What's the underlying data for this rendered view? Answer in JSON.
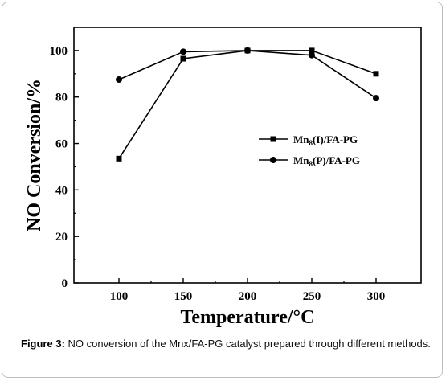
{
  "chart_data": {
    "type": "line",
    "xlabel": "Temperature/°C",
    "ylabel": "NO Conversion/%",
    "x": [
      100,
      150,
      200,
      250,
      300
    ],
    "xlim": [
      65,
      335
    ],
    "ylim": [
      0,
      110
    ],
    "x_ticks": [
      100,
      150,
      200,
      250,
      300
    ],
    "y_ticks": [
      0,
      20,
      40,
      60,
      80,
      100
    ],
    "grid": false,
    "legend_position": "center-right",
    "series": [
      {
        "name_base": "Mn",
        "name_sub": "8",
        "name_rest": "(I)/FA-PG",
        "marker": "square",
        "color": "#000000",
        "values": [
          53.5,
          96.5,
          100,
          100,
          90
        ]
      },
      {
        "name_base": "Mn",
        "name_sub": "8",
        "name_rest": "(P)/FA-PG",
        "marker": "circle",
        "color": "#000000",
        "values": [
          87.5,
          99.5,
          100,
          98,
          79.5
        ]
      }
    ]
  },
  "caption": {
    "label": "Figure 3:",
    "text": " NO conversion of the Mnx/FA-PG catalyst prepared through different methods."
  }
}
